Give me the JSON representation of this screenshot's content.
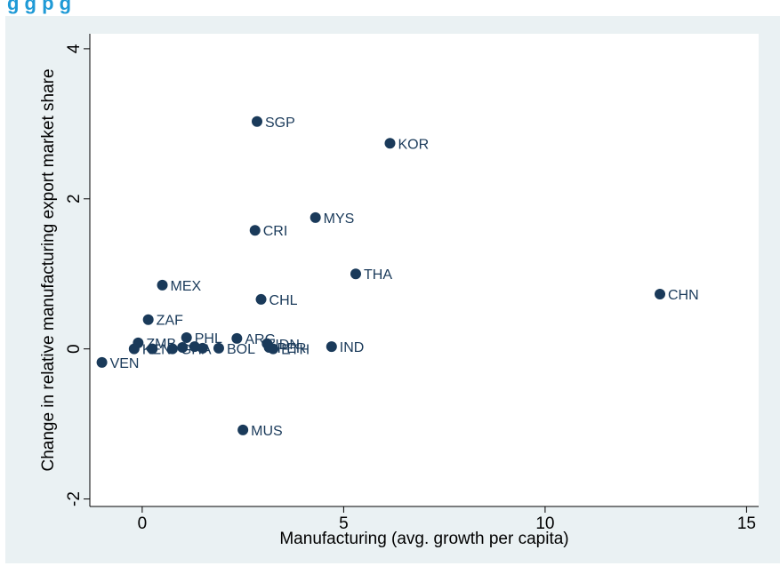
{
  "page": {
    "title_fragment": "g                    g p                               g"
  },
  "chart_data": {
    "type": "scatter",
    "xlabel": "Manufacturing (avg. growth per capita)",
    "ylabel": "Change in relative manufacturing export market share",
    "xlim": [
      -1.3,
      15.3
    ],
    "ylim": [
      -2.1,
      4.2
    ],
    "xticks": [
      0,
      5,
      10,
      15
    ],
    "yticks": [
      -2,
      0,
      2,
      4
    ],
    "grid": false,
    "marker_color": "#1a3a5a",
    "points": [
      {
        "label": "SGP",
        "x": 2.85,
        "y": 3.03
      },
      {
        "label": "KOR",
        "x": 6.15,
        "y": 2.74
      },
      {
        "label": "MYS",
        "x": 4.3,
        "y": 1.75
      },
      {
        "label": "CRI",
        "x": 2.8,
        "y": 1.58
      },
      {
        "label": "THA",
        "x": 5.3,
        "y": 1.0
      },
      {
        "label": "MEX",
        "x": 0.5,
        "y": 0.85
      },
      {
        "label": "CHL",
        "x": 2.95,
        "y": 0.66
      },
      {
        "label": "CHN",
        "x": 12.85,
        "y": 0.73
      },
      {
        "label": "ZAF",
        "x": 0.15,
        "y": 0.39
      },
      {
        "label": "PHL",
        "x": 1.1,
        "y": 0.15
      },
      {
        "label": "ARG",
        "x": 2.35,
        "y": 0.14
      },
      {
        "label": "ZMB",
        "x": -0.1,
        "y": 0.08
      },
      {
        "label": "IDN",
        "x": 3.1,
        "y": 0.07
      },
      {
        "label": "IND",
        "x": 4.7,
        "y": 0.03
      },
      {
        "label": "BOL",
        "x": 1.9,
        "y": 0.01
      },
      {
        "label": "PER",
        "x": 3.15,
        "y": 0.02
      },
      {
        "label": "ETH",
        "x": 3.25,
        "y": 0.0
      },
      {
        "label": "KEN",
        "x": -0.2,
        "y": 0.0
      },
      {
        "label": "GHA",
        "x": 0.75,
        "y": 0.0
      },
      {
        "label": "",
        "x": 0.25,
        "y": 0.0
      },
      {
        "label": "",
        "x": 1.0,
        "y": 0.02
      },
      {
        "label": "",
        "x": 1.3,
        "y": 0.03
      },
      {
        "label": "",
        "x": 1.5,
        "y": 0.01
      },
      {
        "label": "VEN",
        "x": -1.0,
        "y": -0.18
      },
      {
        "label": "MUS",
        "x": 2.5,
        "y": -1.08
      }
    ]
  }
}
